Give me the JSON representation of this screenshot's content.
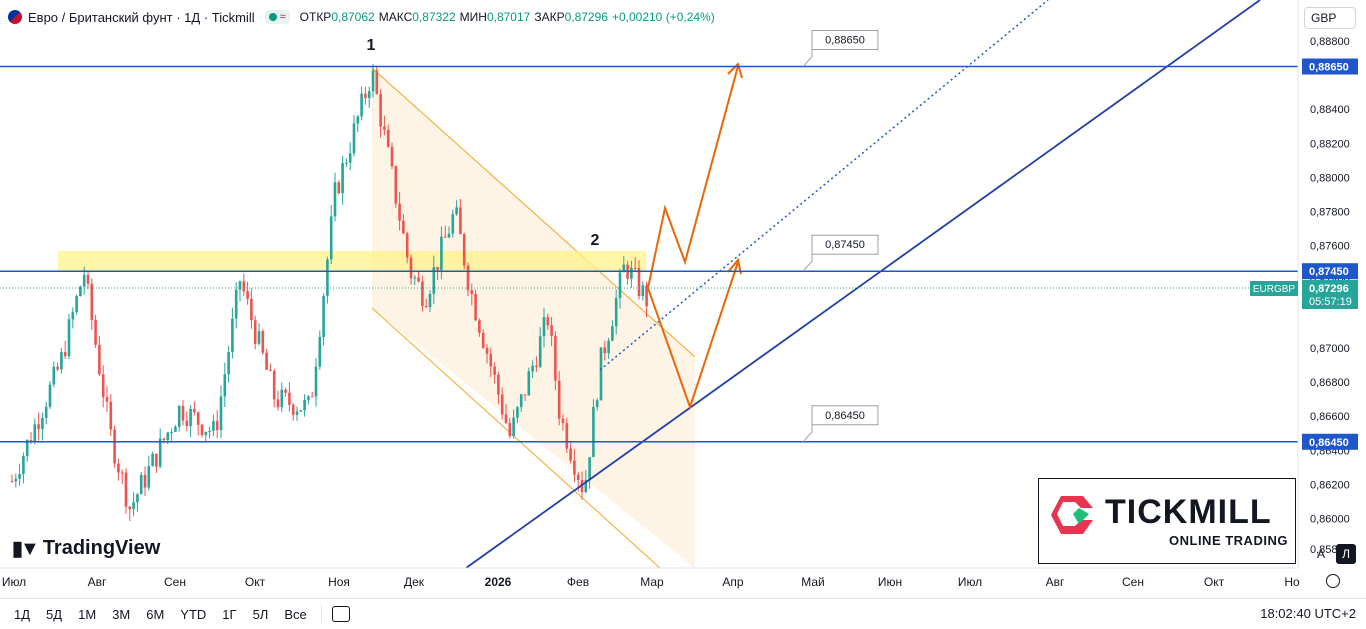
{
  "header": {
    "title": "Евро / Британский фунт · 1Д · Tickmill",
    "open_label": "ОТКР",
    "open_value": "0,87062",
    "high_label": "МАКС",
    "high_value": "0,87322",
    "low_label": "МИН",
    "low_value": "0,87017",
    "close_label": "ЗАКР",
    "close_value": "0,87296",
    "change": "+0,00210 (+0,24%)",
    "badge_symbol": "≈"
  },
  "currency_select": "GBP",
  "chart_data": {
    "type": "candlestick",
    "symbol": "EURGBP",
    "ylim": [
      0.8571,
      0.8904
    ],
    "y_ticks": [
      "0,88800",
      "0,88400",
      "0,88200",
      "0,88000",
      "0,87800",
      "0,87600",
      "0,87400",
      "0,87000",
      "0,86800",
      "0,86600",
      "0,86400",
      "0,86200",
      "0,86000",
      "0,85820"
    ],
    "x_ticks": [
      "Июл",
      "Авг",
      "Сен",
      "Окт",
      "Ноя",
      "Дек",
      "2026",
      "Фев",
      "Мар",
      "Апр",
      "Май",
      "Июн",
      "Июл",
      "Авг",
      "Сен",
      "Окт",
      "Но"
    ],
    "price_levels": [
      {
        "label": "0,88650",
        "value": 0.8865
      },
      {
        "label": "0,87450",
        "value": 0.8745
      },
      {
        "label": "0,86450",
        "value": 0.8645
      }
    ],
    "current_price": {
      "symbol": "EURGBP",
      "label": "0,87296",
      "countdown": "05:57:19"
    },
    "annotations": [
      "1",
      "2"
    ],
    "anchors": {
      "peak1": {
        "date": "Ноя",
        "value": 0.8862
      },
      "top2": {
        "date": "Мар",
        "value": 0.8749
      },
      "low": {
        "date": "Фев",
        "value": 0.8616
      }
    },
    "colors": {
      "up": "#26a69a",
      "down": "#ef5350",
      "level": "#1f56c9",
      "projection": "#e8670a",
      "zone": "#ffe97a",
      "channel": "#f4a623"
    }
  },
  "logos": {
    "tickmill_name": "TICKMILL",
    "tickmill_sub": "ONLINE TRADING",
    "tradingview": "TradingView"
  },
  "bottom": {
    "intervals": [
      "1Д",
      "5Д",
      "1М",
      "3М",
      "6М",
      "YTD",
      "1Г",
      "5Л",
      "Все"
    ],
    "clock": "18:02:40 UTC+2"
  },
  "scale_buttons": {
    "auto": "A",
    "log": "Л"
  }
}
